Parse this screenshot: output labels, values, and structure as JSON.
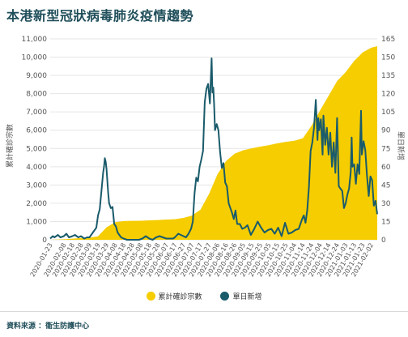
{
  "title": "本港新型冠狀病毒肺炎疫情趨勢",
  "source": "資料來源 ：衞生防護中心",
  "colors": {
    "cumulative": "#f5cd00",
    "daily": "#1a5b6b",
    "grid": "#e6e6e6",
    "title": "#1f4e5a"
  },
  "chart_data": {
    "type": "area",
    "title": "",
    "left_axis_label": "累計確診宗數",
    "right_axis_label": "單日新增",
    "left_ylim": [
      0,
      11000
    ],
    "right_ylim": [
      0,
      165
    ],
    "left_ticks": [
      "0",
      "1,000",
      "2,000",
      "3,000",
      "4,000",
      "5,000",
      "6,000",
      "7,000",
      "8,000",
      "9,000",
      "10,000",
      "11,000"
    ],
    "right_ticks": [
      "0",
      "15",
      "30",
      "45",
      "60",
      "75",
      "90",
      "105",
      "120",
      "135",
      "150",
      "165"
    ],
    "x_labels": [
      "2020-01-23",
      "2020-02-08",
      "2020-02-18",
      "2020-02-28",
      "2020-03-09",
      "2020-03-19",
      "2020-03-29",
      "2020-04-08",
      "2020-04-18",
      "2020-04-28",
      "2020-05-08",
      "2020-05-18",
      "2020-05-28",
      "2020-06-07",
      "2020-06-17",
      "2020-06-27",
      "2020-07-07",
      "2020-07-17",
      "2020-07-27",
      "2020-08-06",
      "2020-08-16",
      "2020-08-26",
      "2020-09-05",
      "2020-09-15",
      "2020-09-25",
      "2020-10-05",
      "2020-10-15",
      "2020-10-25",
      "2020-11-04",
      "2020-11-14",
      "2020-11-24",
      "2020-12-04",
      "2020-12-14",
      "2020-12-24",
      "2021-01-03",
      "2021-01-13",
      "2021-01-23",
      "2021-02-02"
    ],
    "x_dates": [
      "2020-01-23",
      "2020-02-08",
      "2020-02-18",
      "2020-02-28",
      "2020-03-09",
      "2020-03-19",
      "2020-03-29",
      "2020-04-08",
      "2020-04-18",
      "2020-04-28",
      "2020-05-08",
      "2020-05-18",
      "2020-05-28",
      "2020-06-07",
      "2020-06-17",
      "2020-06-27",
      "2020-07-07",
      "2020-07-17",
      "2020-07-27",
      "2020-08-06",
      "2020-08-16",
      "2020-08-26",
      "2020-09-05",
      "2020-09-15",
      "2020-09-25",
      "2020-10-05",
      "2020-10-15",
      "2020-10-25",
      "2020-11-04",
      "2020-11-14",
      "2020-11-24",
      "2020-12-04",
      "2020-12-14",
      "2020-12-24",
      "2021-01-03",
      "2021-01-13",
      "2021-01-23",
      "2021-02-02",
      "2021-02-09"
    ],
    "series": [
      {
        "name": "累計確診宗數",
        "axis": "left",
        "style": "area",
        "values": [
          2,
          26,
          60,
          94,
          115,
          192,
          682,
          960,
          1026,
          1038,
          1044,
          1065,
          1082,
          1108,
          1128,
          1197,
          1324,
          1655,
          2505,
          3593,
          4312,
          4712,
          4901,
          5007,
          5100,
          5182,
          5283,
          5361,
          5422,
          5560,
          6239,
          7078,
          7886,
          8688,
          9181,
          9795,
          10265,
          10515,
          10600
        ]
      },
      {
        "name": "單日新增",
        "axis": "right",
        "style": "line",
        "points": [
          [
            "2020-01-23",
            1
          ],
          [
            "2020-01-26",
            3
          ],
          [
            "2020-01-28",
            2
          ],
          [
            "2020-02-01",
            4
          ],
          [
            "2020-02-04",
            2
          ],
          [
            "2020-02-08",
            3
          ],
          [
            "2020-02-11",
            5
          ],
          [
            "2020-02-14",
            2
          ],
          [
            "2020-02-18",
            3
          ],
          [
            "2020-02-21",
            4
          ],
          [
            "2020-02-25",
            2
          ],
          [
            "2020-02-28",
            3
          ],
          [
            "2020-03-03",
            1
          ],
          [
            "2020-03-06",
            2
          ],
          [
            "2020-03-09",
            2
          ],
          [
            "2020-03-12",
            5
          ],
          [
            "2020-03-15",
            8
          ],
          [
            "2020-03-17",
            10
          ],
          [
            "2020-03-19",
            20
          ],
          [
            "2020-03-21",
            25
          ],
          [
            "2020-03-23",
            40
          ],
          [
            "2020-03-25",
            55
          ],
          [
            "2020-03-26",
            60
          ],
          [
            "2020-03-27",
            67
          ],
          [
            "2020-03-28",
            64
          ],
          [
            "2020-03-29",
            58
          ],
          [
            "2020-03-31",
            38
          ],
          [
            "2020-04-01",
            30
          ],
          [
            "2020-04-03",
            26
          ],
          [
            "2020-04-05",
            27
          ],
          [
            "2020-04-07",
            13
          ],
          [
            "2020-04-09",
            11
          ],
          [
            "2020-04-11",
            6
          ],
          [
            "2020-04-13",
            4
          ],
          [
            "2020-04-15",
            2
          ],
          [
            "2020-04-18",
            1
          ],
          [
            "2020-04-22",
            0
          ],
          [
            "2020-04-26",
            0
          ],
          [
            "2020-04-30",
            0
          ],
          [
            "2020-05-06",
            0
          ],
          [
            "2020-05-10",
            1
          ],
          [
            "2020-05-14",
            3
          ],
          [
            "2020-05-18",
            1
          ],
          [
            "2020-05-22",
            0
          ],
          [
            "2020-05-26",
            2
          ],
          [
            "2020-05-30",
            3
          ],
          [
            "2020-06-03",
            2
          ],
          [
            "2020-06-07",
            1
          ],
          [
            "2020-06-11",
            1
          ],
          [
            "2020-06-15",
            1
          ],
          [
            "2020-06-17",
            2
          ],
          [
            "2020-06-21",
            5
          ],
          [
            "2020-06-24",
            4
          ],
          [
            "2020-06-27",
            3
          ],
          [
            "2020-06-30",
            2
          ],
          [
            "2020-07-03",
            5
          ],
          [
            "2020-07-06",
            9
          ],
          [
            "2020-07-08",
            15
          ],
          [
            "2020-07-10",
            38
          ],
          [
            "2020-07-12",
            51
          ],
          [
            "2020-07-14",
            48
          ],
          [
            "2020-07-16",
            60
          ],
          [
            "2020-07-18",
            66
          ],
          [
            "2020-07-20",
            73
          ],
          [
            "2020-07-22",
            113
          ],
          [
            "2020-07-24",
            124
          ],
          [
            "2020-07-26",
            128
          ],
          [
            "2020-07-28",
            112
          ],
          [
            "2020-07-29",
            130
          ],
          [
            "2020-07-30",
            149
          ],
          [
            "2020-07-31",
            121
          ],
          [
            "2020-08-01",
            125
          ],
          [
            "2020-08-02",
            111
          ],
          [
            "2020-08-03",
            90
          ],
          [
            "2020-08-05",
            95
          ],
          [
            "2020-08-07",
            90
          ],
          [
            "2020-08-09",
            72
          ],
          [
            "2020-08-11",
            59
          ],
          [
            "2020-08-13",
            63
          ],
          [
            "2020-08-15",
            47
          ],
          [
            "2020-08-17",
            44
          ],
          [
            "2020-08-19",
            30
          ],
          [
            "2020-08-21",
            26
          ],
          [
            "2020-08-23",
            22
          ],
          [
            "2020-08-25",
            17
          ],
          [
            "2020-08-27",
            24
          ],
          [
            "2020-08-29",
            13
          ],
          [
            "2020-09-01",
            13
          ],
          [
            "2020-09-04",
            9
          ],
          [
            "2020-09-07",
            10
          ],
          [
            "2020-09-10",
            12
          ],
          [
            "2020-09-14",
            4
          ],
          [
            "2020-09-18",
            9
          ],
          [
            "2020-09-22",
            15
          ],
          [
            "2020-09-26",
            10
          ],
          [
            "2020-09-30",
            6
          ],
          [
            "2020-10-04",
            8
          ],
          [
            "2020-10-08",
            9
          ],
          [
            "2020-10-12",
            5
          ],
          [
            "2020-10-16",
            10
          ],
          [
            "2020-10-20",
            3
          ],
          [
            "2020-10-24",
            14
          ],
          [
            "2020-10-28",
            5
          ],
          [
            "2020-11-01",
            6
          ],
          [
            "2020-11-05",
            8
          ],
          [
            "2020-11-09",
            9
          ],
          [
            "2020-11-13",
            17
          ],
          [
            "2020-11-15",
            20
          ],
          [
            "2020-11-17",
            14
          ],
          [
            "2020-11-19",
            24
          ],
          [
            "2020-11-21",
            43
          ],
          [
            "2020-11-23",
            73
          ],
          [
            "2020-11-25",
            80
          ],
          [
            "2020-11-27",
            92
          ],
          [
            "2020-11-29",
            115
          ],
          [
            "2020-12-01",
            82
          ],
          [
            "2020-12-02",
            100
          ],
          [
            "2020-12-03",
            90
          ],
          [
            "2020-12-05",
            99
          ],
          [
            "2020-12-07",
            70
          ],
          [
            "2020-12-08",
            102
          ],
          [
            "2020-12-10",
            78
          ],
          [
            "2020-12-12",
            92
          ],
          [
            "2020-12-14",
            70
          ],
          [
            "2020-12-16",
            88
          ],
          [
            "2020-12-18",
            60
          ],
          [
            "2020-12-20",
            80
          ],
          [
            "2020-12-22",
            55
          ],
          [
            "2020-12-24",
            100
          ],
          [
            "2020-12-26",
            44
          ],
          [
            "2020-12-28",
            42
          ],
          [
            "2020-12-30",
            40
          ],
          [
            "2021-01-01",
            26
          ],
          [
            "2021-01-03",
            30
          ],
          [
            "2021-01-05",
            37
          ],
          [
            "2021-01-07",
            42
          ],
          [
            "2021-01-09",
            56
          ],
          [
            "2021-01-10",
            84
          ],
          [
            "2021-01-11",
            60
          ],
          [
            "2021-01-13",
            62
          ],
          [
            "2021-01-15",
            46
          ],
          [
            "2021-01-17",
            62
          ],
          [
            "2021-01-19",
            54
          ],
          [
            "2021-01-21",
            106
          ],
          [
            "2021-01-22",
            70
          ],
          [
            "2021-01-24",
            81
          ],
          [
            "2021-01-26",
            74
          ],
          [
            "2021-01-28",
            53
          ],
          [
            "2021-01-30",
            36
          ],
          [
            "2021-02-01",
            52
          ],
          [
            "2021-02-03",
            49
          ],
          [
            "2021-02-05",
            28
          ],
          [
            "2021-02-07",
            32
          ],
          [
            "2021-02-09",
            21
          ]
        ]
      }
    ]
  }
}
